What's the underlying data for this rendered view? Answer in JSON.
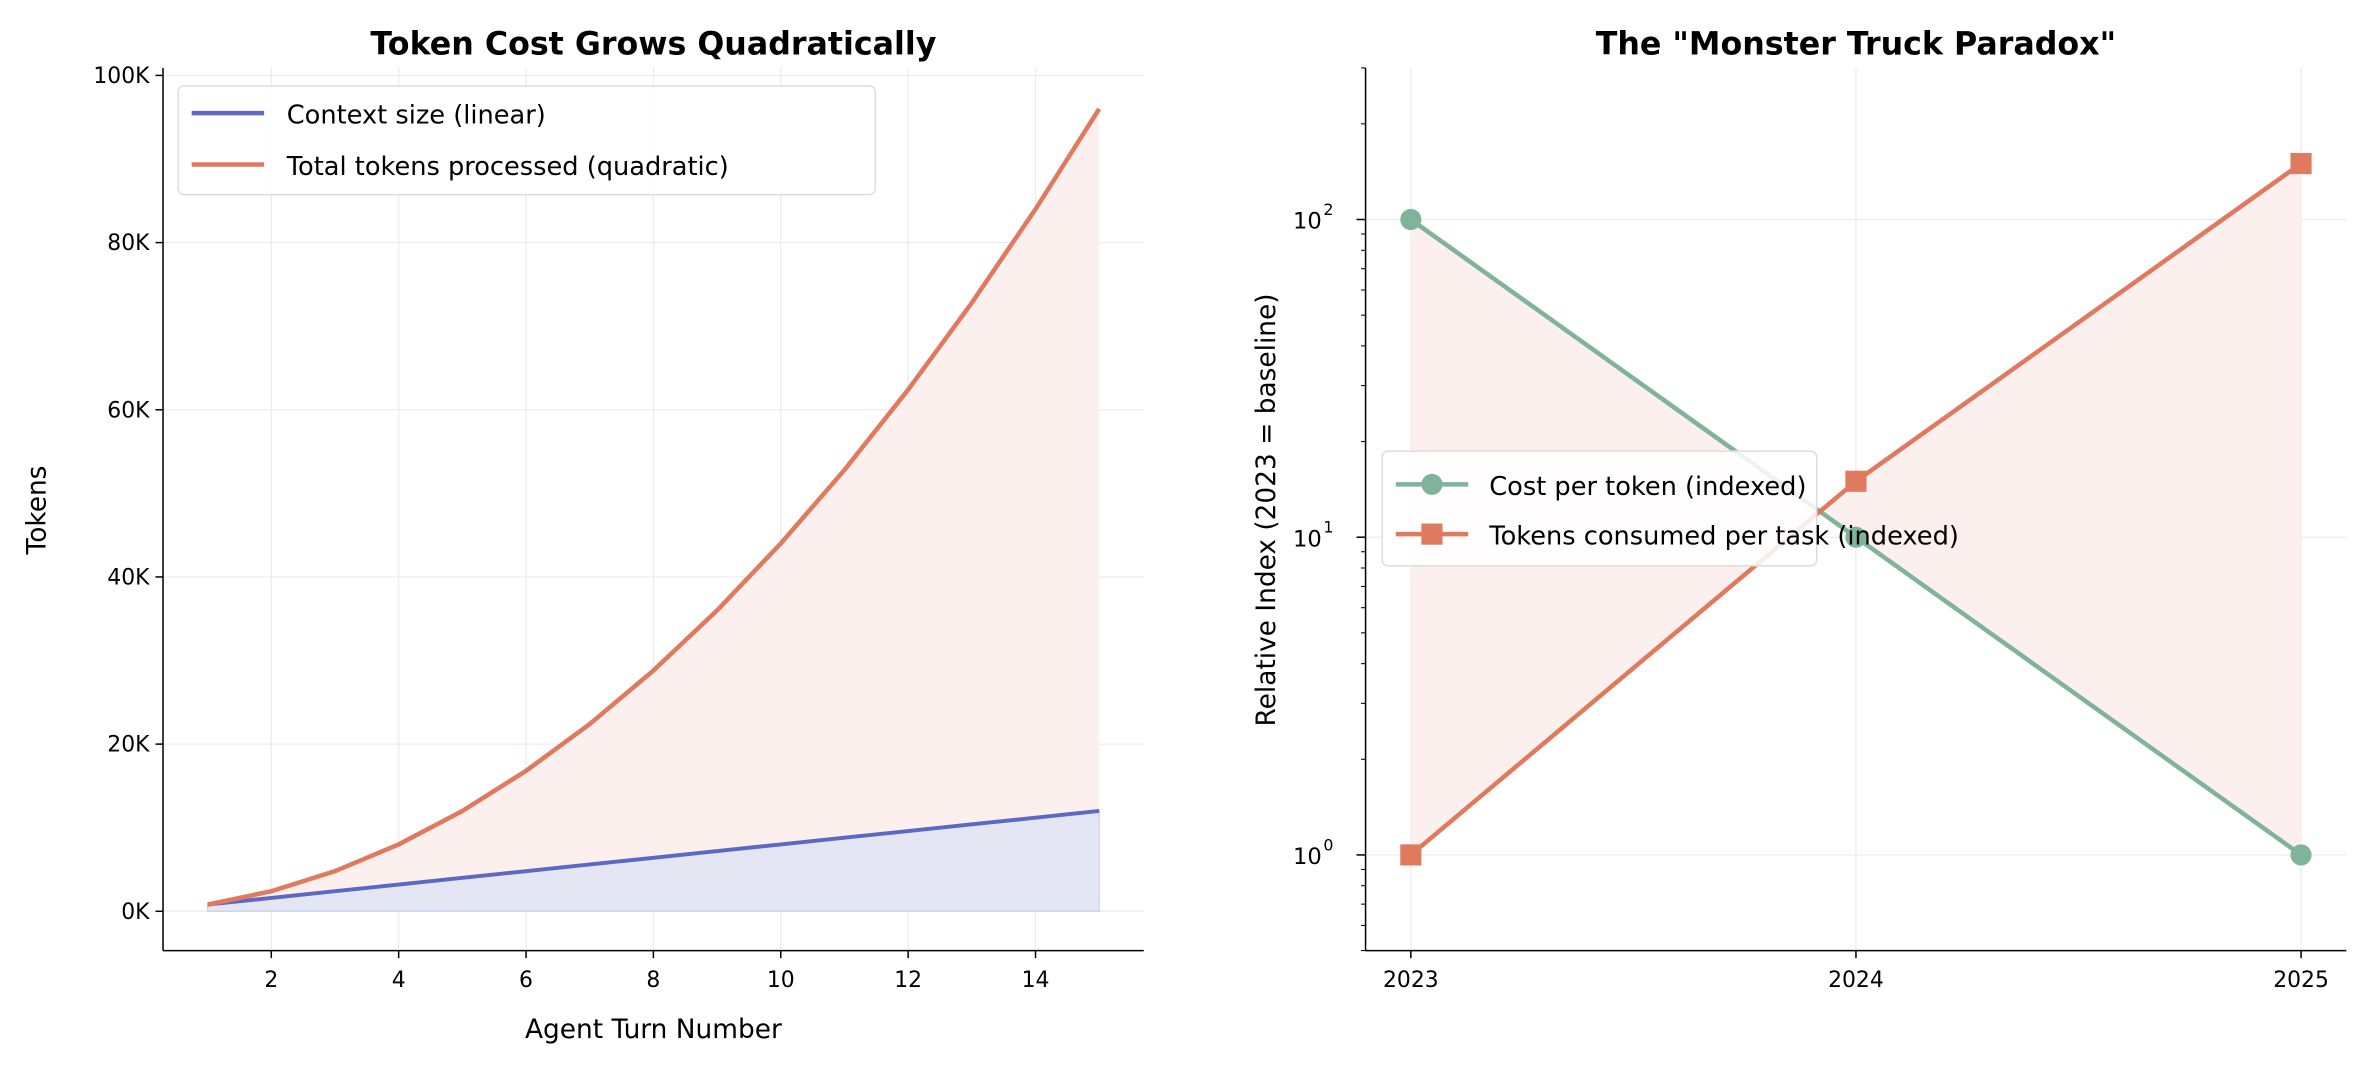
{
  "chart_data": [
    {
      "type": "line",
      "title": "Token Cost Grows Quadratically",
      "xlabel": "Agent Turn Number",
      "ylabel": "Tokens",
      "xlim": [
        0.3,
        15.7
      ],
      "ylim": [
        -4700,
        100900
      ],
      "grid": true,
      "legend_position": "top-left",
      "x_ticks": [
        2,
        4,
        6,
        8,
        10,
        12,
        14
      ],
      "x_tick_labels": [
        "2",
        "4",
        "6",
        "8",
        "10",
        "12",
        "14"
      ],
      "y_ticks": [
        0,
        20000,
        40000,
        60000,
        80000,
        100000
      ],
      "y_tick_labels": [
        "0K",
        "20K",
        "40K",
        "60K",
        "80K",
        "100K"
      ],
      "x": [
        1,
        2,
        3,
        4,
        5,
        6,
        7,
        8,
        9,
        10,
        11,
        12,
        13,
        14,
        15
      ],
      "series": [
        {
          "name": "Context size (linear)",
          "color": "#5c68c4",
          "fill": "#e4e6f4",
          "values": [
            800,
            1600,
            2400,
            3200,
            4000,
            4800,
            5600,
            6400,
            7200,
            8000,
            8800,
            9600,
            10400,
            11200,
            12000
          ]
        },
        {
          "name": "Total tokens processed (quadratic)",
          "color": "#e07a5f",
          "fill": "#fbf0ed",
          "values": [
            800,
            2400,
            4800,
            8000,
            12000,
            16800,
            22400,
            28800,
            36000,
            44000,
            52800,
            62400,
            72800,
            84000,
            96000
          ]
        }
      ]
    },
    {
      "type": "line",
      "title": "The \"Monster Truck Paradox\"",
      "xlabel": "",
      "ylabel": "Relative Index (2023 = baseline)",
      "yscale": "log",
      "ylim": [
        0.5,
        300
      ],
      "grid": true,
      "legend_position": "center-left",
      "x": [
        "2023",
        "2024",
        "2025"
      ],
      "y_tick_labels": [
        {
          "base": "10",
          "exp": "0"
        },
        {
          "base": "10",
          "exp": "1"
        },
        {
          "base": "10",
          "exp": "2"
        }
      ],
      "series": [
        {
          "name": "Cost per token (indexed)",
          "color": "#7fb39a",
          "marker": "circle",
          "values": [
            100,
            10,
            1
          ]
        },
        {
          "name": "Tokens consumed per task (indexed)",
          "color": "#e07a5f",
          "marker": "square",
          "values": [
            1,
            15,
            150
          ]
        }
      ],
      "fill_between_color": "#fbf0ed"
    }
  ]
}
